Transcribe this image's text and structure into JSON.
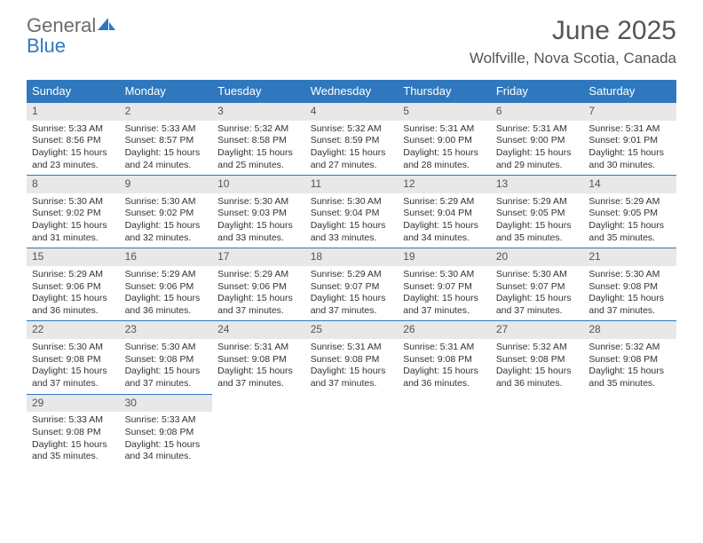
{
  "logo": {
    "text1": "General",
    "text2": "Blue",
    "color_general": "#6b6b6b",
    "color_blue": "#2f78bd"
  },
  "title": "June 2025",
  "location": "Wolfville, Nova Scotia, Canada",
  "colors": {
    "header_bg": "#2f78bd",
    "header_text": "#ffffff",
    "daynum_bg": "#e8e8e8",
    "border": "#2f78bd",
    "text": "#333333",
    "title_text": "#555555"
  },
  "weekdays": [
    "Sunday",
    "Monday",
    "Tuesday",
    "Wednesday",
    "Thursday",
    "Friday",
    "Saturday"
  ],
  "weeks": [
    [
      {
        "n": "1",
        "sunrise": "Sunrise: 5:33 AM",
        "sunset": "Sunset: 8:56 PM",
        "day1": "Daylight: 15 hours",
        "day2": "and 23 minutes."
      },
      {
        "n": "2",
        "sunrise": "Sunrise: 5:33 AM",
        "sunset": "Sunset: 8:57 PM",
        "day1": "Daylight: 15 hours",
        "day2": "and 24 minutes."
      },
      {
        "n": "3",
        "sunrise": "Sunrise: 5:32 AM",
        "sunset": "Sunset: 8:58 PM",
        "day1": "Daylight: 15 hours",
        "day2": "and 25 minutes."
      },
      {
        "n": "4",
        "sunrise": "Sunrise: 5:32 AM",
        "sunset": "Sunset: 8:59 PM",
        "day1": "Daylight: 15 hours",
        "day2": "and 27 minutes."
      },
      {
        "n": "5",
        "sunrise": "Sunrise: 5:31 AM",
        "sunset": "Sunset: 9:00 PM",
        "day1": "Daylight: 15 hours",
        "day2": "and 28 minutes."
      },
      {
        "n": "6",
        "sunrise": "Sunrise: 5:31 AM",
        "sunset": "Sunset: 9:00 PM",
        "day1": "Daylight: 15 hours",
        "day2": "and 29 minutes."
      },
      {
        "n": "7",
        "sunrise": "Sunrise: 5:31 AM",
        "sunset": "Sunset: 9:01 PM",
        "day1": "Daylight: 15 hours",
        "day2": "and 30 minutes."
      }
    ],
    [
      {
        "n": "8",
        "sunrise": "Sunrise: 5:30 AM",
        "sunset": "Sunset: 9:02 PM",
        "day1": "Daylight: 15 hours",
        "day2": "and 31 minutes."
      },
      {
        "n": "9",
        "sunrise": "Sunrise: 5:30 AM",
        "sunset": "Sunset: 9:02 PM",
        "day1": "Daylight: 15 hours",
        "day2": "and 32 minutes."
      },
      {
        "n": "10",
        "sunrise": "Sunrise: 5:30 AM",
        "sunset": "Sunset: 9:03 PM",
        "day1": "Daylight: 15 hours",
        "day2": "and 33 minutes."
      },
      {
        "n": "11",
        "sunrise": "Sunrise: 5:30 AM",
        "sunset": "Sunset: 9:04 PM",
        "day1": "Daylight: 15 hours",
        "day2": "and 33 minutes."
      },
      {
        "n": "12",
        "sunrise": "Sunrise: 5:29 AM",
        "sunset": "Sunset: 9:04 PM",
        "day1": "Daylight: 15 hours",
        "day2": "and 34 minutes."
      },
      {
        "n": "13",
        "sunrise": "Sunrise: 5:29 AM",
        "sunset": "Sunset: 9:05 PM",
        "day1": "Daylight: 15 hours",
        "day2": "and 35 minutes."
      },
      {
        "n": "14",
        "sunrise": "Sunrise: 5:29 AM",
        "sunset": "Sunset: 9:05 PM",
        "day1": "Daylight: 15 hours",
        "day2": "and 35 minutes."
      }
    ],
    [
      {
        "n": "15",
        "sunrise": "Sunrise: 5:29 AM",
        "sunset": "Sunset: 9:06 PM",
        "day1": "Daylight: 15 hours",
        "day2": "and 36 minutes."
      },
      {
        "n": "16",
        "sunrise": "Sunrise: 5:29 AM",
        "sunset": "Sunset: 9:06 PM",
        "day1": "Daylight: 15 hours",
        "day2": "and 36 minutes."
      },
      {
        "n": "17",
        "sunrise": "Sunrise: 5:29 AM",
        "sunset": "Sunset: 9:06 PM",
        "day1": "Daylight: 15 hours",
        "day2": "and 37 minutes."
      },
      {
        "n": "18",
        "sunrise": "Sunrise: 5:29 AM",
        "sunset": "Sunset: 9:07 PM",
        "day1": "Daylight: 15 hours",
        "day2": "and 37 minutes."
      },
      {
        "n": "19",
        "sunrise": "Sunrise: 5:30 AM",
        "sunset": "Sunset: 9:07 PM",
        "day1": "Daylight: 15 hours",
        "day2": "and 37 minutes."
      },
      {
        "n": "20",
        "sunrise": "Sunrise: 5:30 AM",
        "sunset": "Sunset: 9:07 PM",
        "day1": "Daylight: 15 hours",
        "day2": "and 37 minutes."
      },
      {
        "n": "21",
        "sunrise": "Sunrise: 5:30 AM",
        "sunset": "Sunset: 9:08 PM",
        "day1": "Daylight: 15 hours",
        "day2": "and 37 minutes."
      }
    ],
    [
      {
        "n": "22",
        "sunrise": "Sunrise: 5:30 AM",
        "sunset": "Sunset: 9:08 PM",
        "day1": "Daylight: 15 hours",
        "day2": "and 37 minutes."
      },
      {
        "n": "23",
        "sunrise": "Sunrise: 5:30 AM",
        "sunset": "Sunset: 9:08 PM",
        "day1": "Daylight: 15 hours",
        "day2": "and 37 minutes."
      },
      {
        "n": "24",
        "sunrise": "Sunrise: 5:31 AM",
        "sunset": "Sunset: 9:08 PM",
        "day1": "Daylight: 15 hours",
        "day2": "and 37 minutes."
      },
      {
        "n": "25",
        "sunrise": "Sunrise: 5:31 AM",
        "sunset": "Sunset: 9:08 PM",
        "day1": "Daylight: 15 hours",
        "day2": "and 37 minutes."
      },
      {
        "n": "26",
        "sunrise": "Sunrise: 5:31 AM",
        "sunset": "Sunset: 9:08 PM",
        "day1": "Daylight: 15 hours",
        "day2": "and 36 minutes."
      },
      {
        "n": "27",
        "sunrise": "Sunrise: 5:32 AM",
        "sunset": "Sunset: 9:08 PM",
        "day1": "Daylight: 15 hours",
        "day2": "and 36 minutes."
      },
      {
        "n": "28",
        "sunrise": "Sunrise: 5:32 AM",
        "sunset": "Sunset: 9:08 PM",
        "day1": "Daylight: 15 hours",
        "day2": "and 35 minutes."
      }
    ],
    [
      {
        "n": "29",
        "sunrise": "Sunrise: 5:33 AM",
        "sunset": "Sunset: 9:08 PM",
        "day1": "Daylight: 15 hours",
        "day2": "and 35 minutes."
      },
      {
        "n": "30",
        "sunrise": "Sunrise: 5:33 AM",
        "sunset": "Sunset: 9:08 PM",
        "day1": "Daylight: 15 hours",
        "day2": "and 34 minutes."
      },
      {
        "empty": true
      },
      {
        "empty": true
      },
      {
        "empty": true
      },
      {
        "empty": true
      },
      {
        "empty": true
      }
    ]
  ]
}
